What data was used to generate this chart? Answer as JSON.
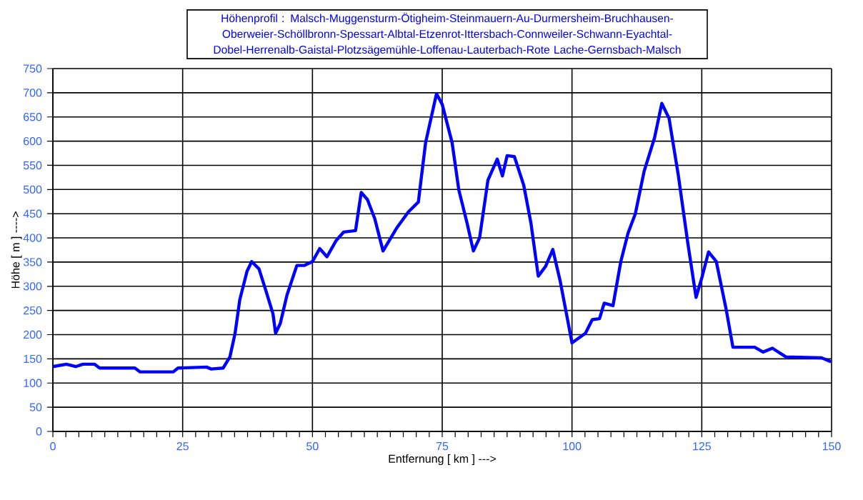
{
  "chart_data": {
    "type": "line",
    "title": "Höhenprofil :  Malsch-Muggensturm-Ötigheim-Steinmauern-Au-Durmersheim-Bruchhausen-Oberweier-Schöllbronn-Spessart-Albtal-Etzenrot-Ittersbach-Connweiler-Schwann-Eyachtal-Dobel-Herrenalb-Gaistal-Plotzsägemühle-Loffenau-Lauterbach-Rote Lache-Gernsbach-Malsch",
    "xlabel": "Entfernung [ km ] --->",
    "ylabel": "Höhe [ m ] ---->",
    "xlim": [
      0,
      150
    ],
    "ylim": [
      0,
      750
    ],
    "xticks": [
      0,
      25,
      50,
      75,
      100,
      125,
      150
    ],
    "yticks": [
      0,
      50,
      100,
      150,
      200,
      250,
      300,
      350,
      400,
      450,
      500,
      550,
      600,
      650,
      700,
      750
    ],
    "grid": true,
    "marker": "none",
    "line_style": "solid",
    "series": [
      {
        "color": "#0000ff",
        "x": [
          0,
          2.6,
          4.4,
          5.8,
          8,
          9,
          15.8,
          16.8,
          23.2,
          24.1,
          29.6,
          30.5,
          32.8,
          34.1,
          35.1,
          36,
          37.4,
          38.3,
          39.7,
          41,
          42.4,
          42.9,
          43.8,
          45.1,
          47,
          48.4,
          50,
          51.4,
          52.8,
          54.6,
          56,
          58.3,
          59.4,
          60.6,
          62,
          63.6,
          66.2,
          68.5,
          70.4,
          71.8,
          73.9,
          75,
          76.9,
          78.2,
          79.8,
          81,
          82.2,
          83.8,
          85.6,
          86.6,
          87.5,
          88.9,
          90.7,
          92.1,
          93.5,
          94.9,
          96.3,
          97.7,
          100,
          102.6,
          103.9,
          105.3,
          106.2,
          107.9,
          109.4,
          110.8,
          112.2,
          113.9,
          115.9,
          117.3,
          118.7,
          120.5,
          122.3,
          123.9,
          125.1,
          126.3,
          127.8,
          129.7,
          131,
          135.2,
          136.8,
          138.6,
          141.2,
          148.1,
          149.9
        ],
        "values": [
          134,
          139,
          134,
          139,
          139,
          131,
          131,
          123,
          123,
          131,
          133,
          129,
          131,
          154,
          203,
          272,
          331,
          351,
          336,
          292,
          243,
          203,
          223,
          282,
          343,
          343,
          351,
          378,
          361,
          395,
          412,
          415,
          494,
          479,
          440,
          373,
          420,
          454,
          474,
          597,
          698,
          676,
          597,
          499,
          430,
          373,
          400,
          519,
          563,
          528,
          570,
          568,
          509,
          430,
          321,
          341,
          376,
          312,
          183,
          203,
          231,
          233,
          265,
          260,
          351,
          410,
          450,
          538,
          607,
          678,
          647,
          528,
          390,
          277,
          321,
          371,
          351,
          252,
          174,
          174,
          164,
          172,
          154,
          152,
          144
        ]
      }
    ]
  }
}
